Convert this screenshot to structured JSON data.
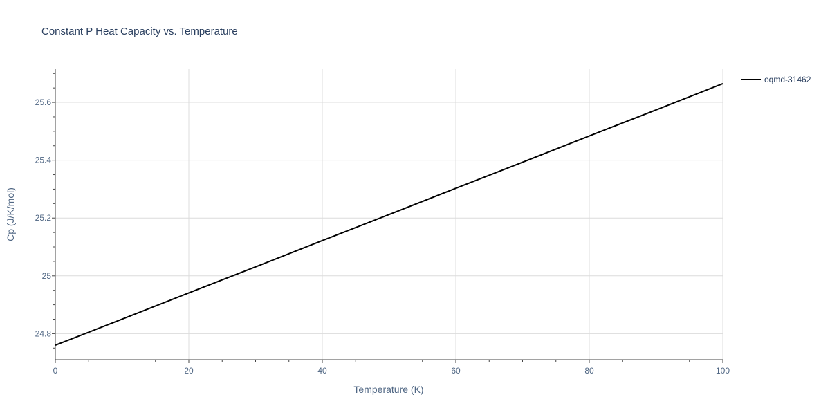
{
  "chart_data": {
    "type": "line",
    "title": "Constant P Heat Capacity vs. Temperature",
    "xlabel": "Temperature (K)",
    "ylabel": "Cp (J/K/mol)",
    "xlim": [
      0,
      100
    ],
    "ylim": [
      24.71,
      25.715
    ],
    "x_ticks": [
      0,
      20,
      40,
      60,
      80,
      100
    ],
    "x_tick_labels": [
      "0",
      "20",
      "40",
      "60",
      "80",
      "100"
    ],
    "y_ticks": [
      24.8,
      25.0,
      25.2,
      25.4,
      25.6
    ],
    "y_tick_labels": [
      "24.8",
      "25",
      "25.2",
      "25.4",
      "25.6"
    ],
    "grid": true,
    "legend_position": "top-right",
    "series": [
      {
        "name": "oqmd-31462",
        "color": "#000000",
        "x": [
          0,
          10,
          20,
          30,
          40,
          50,
          60,
          70,
          80,
          90,
          100
        ],
        "y": [
          24.76,
          24.85,
          24.941,
          25.031,
          25.122,
          25.212,
          25.303,
          25.393,
          25.484,
          25.574,
          25.665
        ]
      }
    ]
  }
}
